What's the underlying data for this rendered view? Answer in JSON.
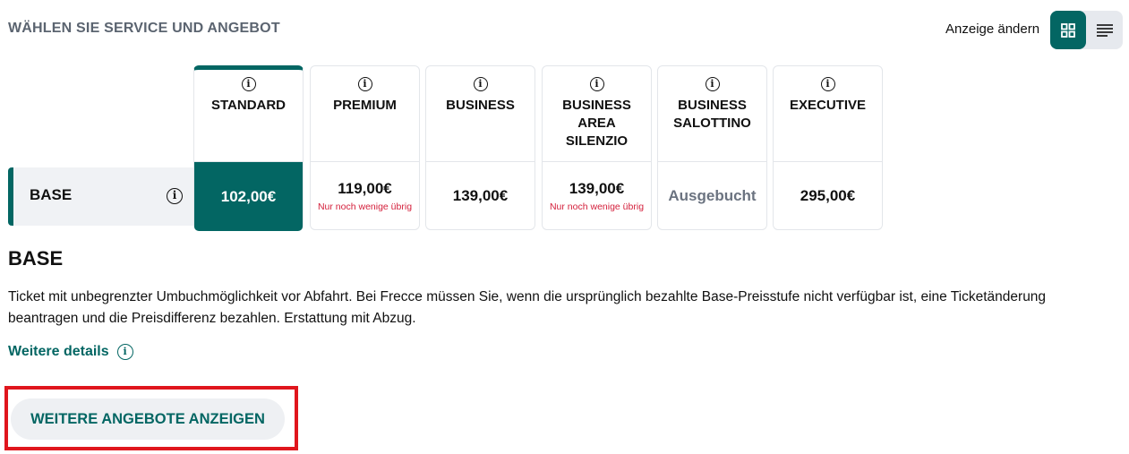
{
  "header": {
    "title": "WÄHLEN SIE SERVICE UND ANGEBOT",
    "view_label": "Anzeige ändern",
    "view_modes": [
      {
        "icon": "grid-icon",
        "active": true
      },
      {
        "icon": "list-icon",
        "active": false
      }
    ]
  },
  "accent_color": "#036663",
  "offer_row": {
    "label": "BASE"
  },
  "services": [
    {
      "name": "STANDARD",
      "price": "102,00€",
      "note": "",
      "selected": true
    },
    {
      "name": "PREMIUM",
      "price": "119,00€",
      "note": "Nur noch wenige übrig"
    },
    {
      "name": "BUSINESS",
      "price": "139,00€",
      "note": ""
    },
    {
      "name": "BUSINESS AREA SILENZIO",
      "price": "139,00€",
      "note": "Nur noch wenige übrig"
    },
    {
      "name": "BUSINESS SALOTTINO",
      "price": "Ausgebucht",
      "note": ""
    },
    {
      "name": "EXECUTIVE",
      "price": "295,00€",
      "note": ""
    }
  ],
  "details": {
    "title": "BASE",
    "description": "Ticket mit unbegrenzter Umbuchmöglichkeit vor Abfahrt. Bei Frecce müssen Sie, wenn die ursprünglich bezahlte Base-Preisstufe nicht verfügbar ist, eine Ticketänderung beantragen und die Preisdifferenz bezahlen. Erstattung mit Abzug.",
    "more_link": "Weitere details"
  },
  "more_offers_button": "WEITERE ANGEBOTE ANZEIGEN"
}
